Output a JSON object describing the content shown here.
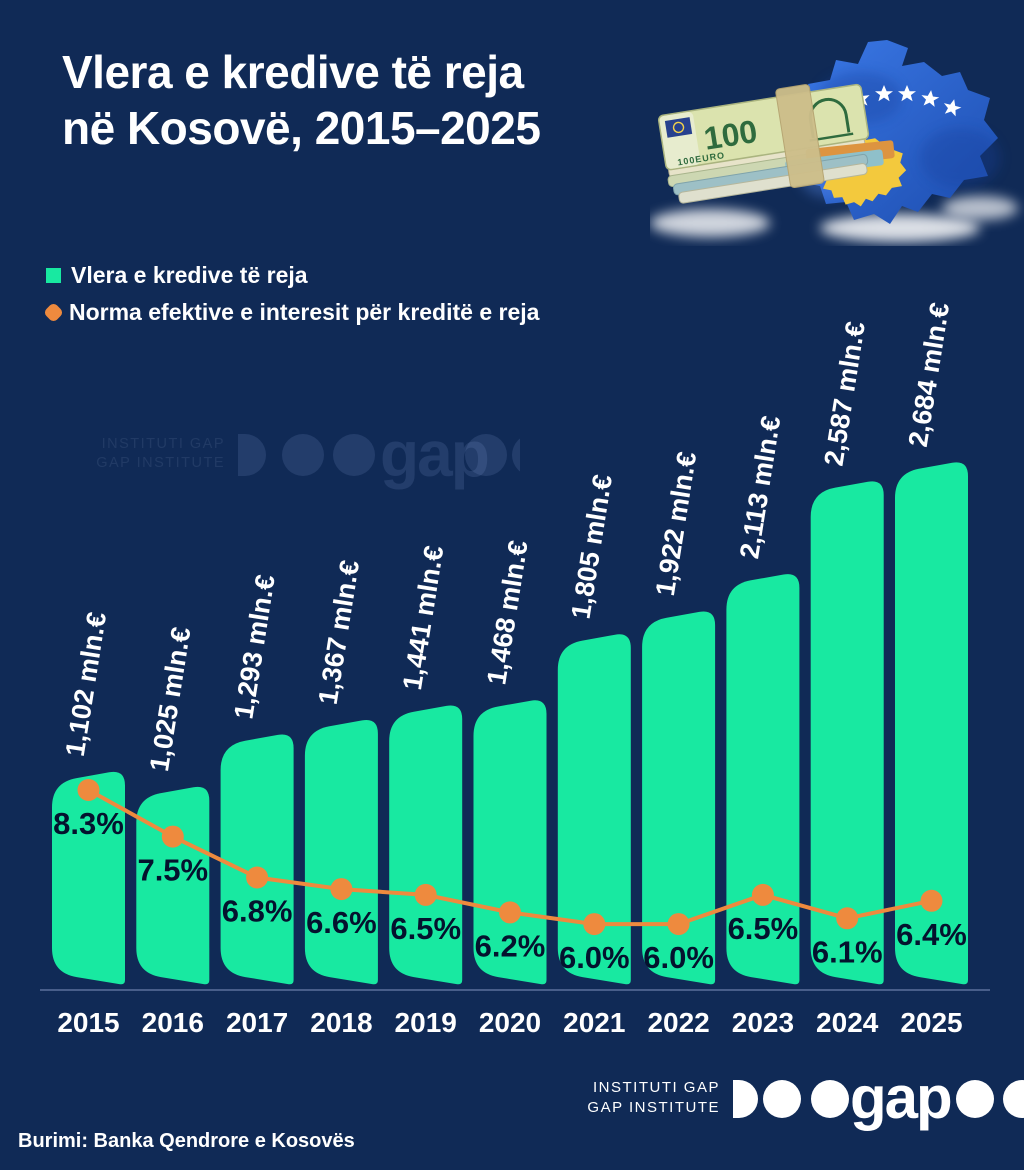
{
  "title": {
    "line1": "Vlera e kredive të reja",
    "line2": "në Kosovë, 2015–2025"
  },
  "legend": {
    "items": [
      {
        "label": "Vlera e kredive të reja",
        "marker": "square",
        "color": "#18e9a1"
      },
      {
        "label": "Norma efektive e interesit për kreditë e reja",
        "marker": "diamond",
        "color": "#ee8a3e"
      }
    ]
  },
  "hero": {
    "banknote_value": "100",
    "banknote_caption": "100EURO"
  },
  "watermark": {
    "line1": "INSTITUTI GAP",
    "line2": "GAP INSTITUTE",
    "logo_text": "gap"
  },
  "footer": {
    "line1": "INSTITUTI GAP",
    "line2": "GAP INSTITUTE",
    "logo_text": "gap"
  },
  "source": "Burimi: Banka Qendrore e Kosovës",
  "colors": {
    "background": "#102a56",
    "bar": "#18e9a1",
    "line": "#ee8a3e",
    "axis": "#5a6f9b",
    "percent_text": "#04122e",
    "value_text": "#ffffff",
    "year_text": "#ffffff",
    "map_blue": "#2e6ada",
    "map_yellow": "#f3c93d"
  },
  "chart_data": {
    "type": "bar",
    "categories": [
      "2015",
      "2016",
      "2017",
      "2018",
      "2019",
      "2020",
      "2021",
      "2022",
      "2023",
      "2024",
      "2025"
    ],
    "series": [
      {
        "name": "Vlera e kredive të reja",
        "type": "bar",
        "unit": "mln.€",
        "values": [
          1102,
          1025,
          1293,
          1367,
          1441,
          1468,
          1805,
          1922,
          2113,
          2587,
          2684
        ],
        "labels": [
          "1,102 mln.€",
          "1,025 mln.€",
          "1,293 mln.€",
          "1,367 mln.€",
          "1,441 mln.€",
          "1,468 mln.€",
          "1,805 mln.€",
          "1,922 mln.€",
          "2,113 mln.€",
          "2,587 mln.€",
          "2,684 mln.€"
        ]
      },
      {
        "name": "Norma efektive e interesit për kreditë e reja",
        "type": "line",
        "unit": "%",
        "values": [
          8.3,
          7.5,
          6.8,
          6.6,
          6.5,
          6.2,
          6.0,
          6.0,
          6.5,
          6.1,
          6.4
        ],
        "labels": [
          "8.3%",
          "7.5%",
          "6.8%",
          "6.6%",
          "6.5%",
          "6.2%",
          "6.0%",
          "6.0%",
          "6.5%",
          "6.1%",
          "6.4%"
        ]
      }
    ],
    "xlabel": "",
    "ylabel": "",
    "grid": false,
    "legend_position": "top-left"
  }
}
